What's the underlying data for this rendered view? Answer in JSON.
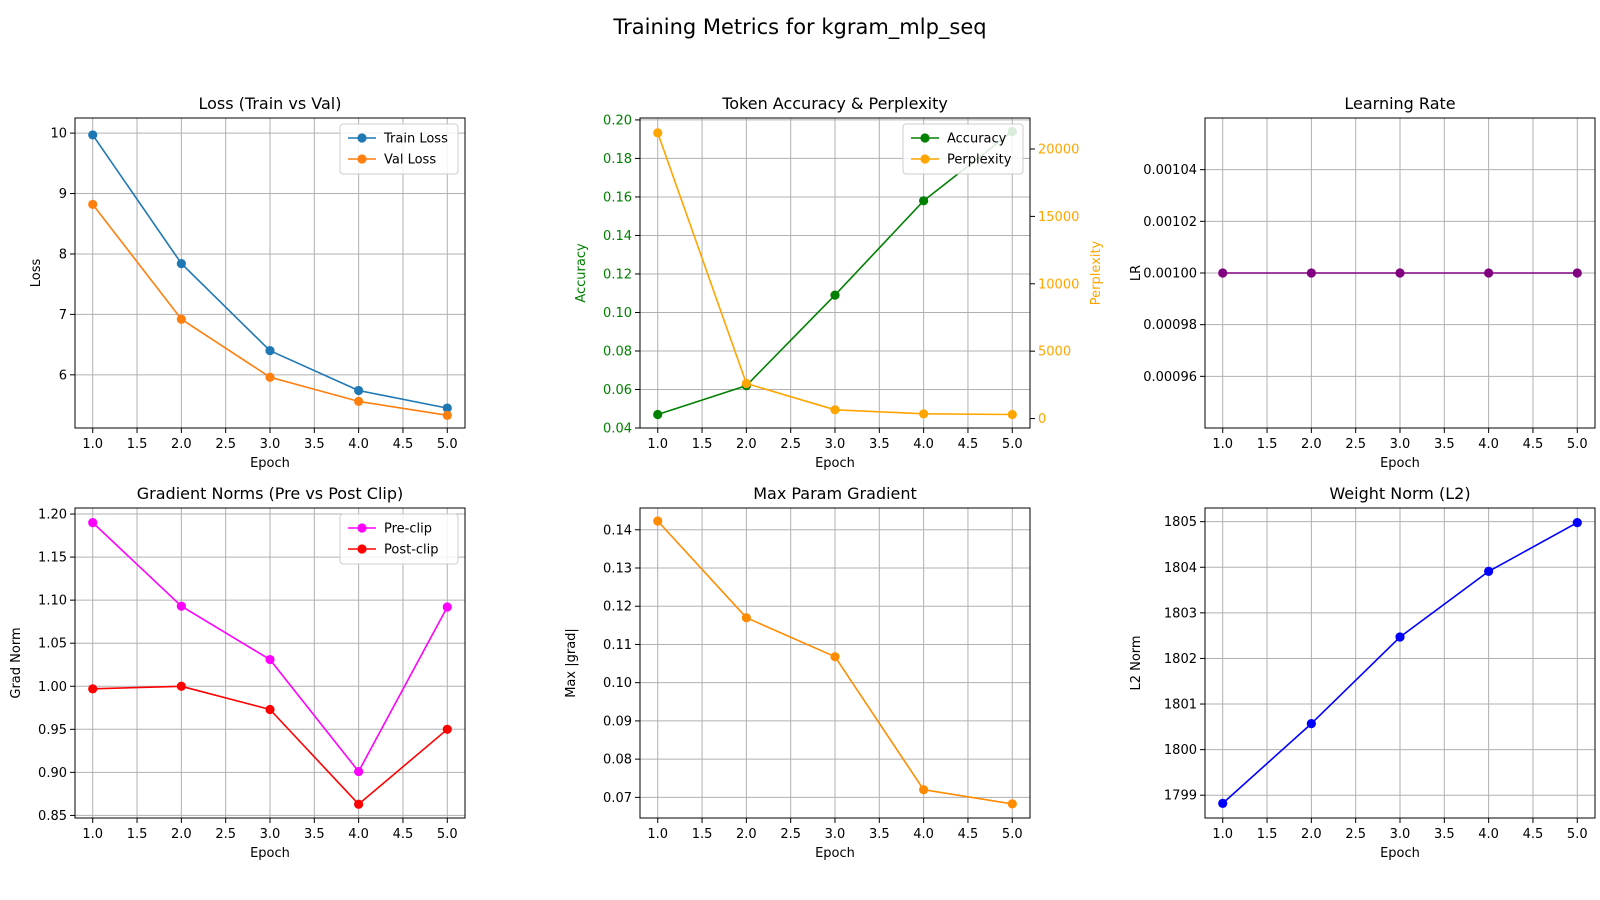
{
  "figure": {
    "title": "Training Metrics for kgram_mlp_seq"
  },
  "colors": {
    "blue": "#1f77b4",
    "orange": "#ff7f0e",
    "green": "#008000",
    "gold": "#ffa500",
    "purple": "#800080",
    "magenta": "#ff00ff",
    "red": "#ff0000",
    "darkorange": "#ff8c00",
    "pureblue": "#0000ff",
    "grid": "#b0b0b0"
  },
  "chart_data": [
    {
      "type": "line",
      "title": "Loss (Train vs Val)",
      "xlabel": "Epoch",
      "ylabel": "Loss",
      "x": [
        1.0,
        2.0,
        3.0,
        4.0,
        5.0
      ],
      "xlim": [
        0.8,
        5.2
      ],
      "ylim": [
        5.12,
        10.25
      ],
      "xticks": [
        "1.0",
        "1.5",
        "2.0",
        "2.5",
        "3.0",
        "3.5",
        "4.0",
        "4.5",
        "5.0"
      ],
      "yticks": [
        "6",
        "7",
        "8",
        "9",
        "10"
      ],
      "grid": true,
      "legend": "top-right",
      "series": [
        {
          "name": "Train Loss",
          "color": "#1f77b4",
          "values": [
            9.97,
            7.84,
            6.4,
            5.74,
            5.45
          ]
        },
        {
          "name": "Val Loss",
          "color": "#ff7f0e",
          "values": [
            8.82,
            6.92,
            5.96,
            5.56,
            5.33
          ]
        }
      ]
    },
    {
      "type": "line",
      "title": "Token Accuracy & Perplexity",
      "xlabel": "Epoch",
      "ylabel": "Accuracy",
      "ylabel_right": "Perplexity",
      "x": [
        1.0,
        2.0,
        3.0,
        4.0,
        5.0
      ],
      "xlim": [
        0.8,
        5.2
      ],
      "ylim": [
        0.04,
        0.201
      ],
      "ylim_right": [
        -700,
        22300
      ],
      "xticks": [
        "1.0",
        "1.5",
        "2.0",
        "2.5",
        "3.0",
        "3.5",
        "4.0",
        "4.5",
        "5.0"
      ],
      "yticks": [
        "0.04",
        "0.06",
        "0.08",
        "0.10",
        "0.12",
        "0.14",
        "0.16",
        "0.18",
        "0.20"
      ],
      "yticks_right": [
        "0",
        "5000",
        "10000",
        "15000",
        "20000"
      ],
      "grid": true,
      "legend": "top-right",
      "series": [
        {
          "name": "Accuracy",
          "color": "#008000",
          "axis": "left",
          "values": [
            0.047,
            0.062,
            0.109,
            0.158,
            0.194
          ]
        },
        {
          "name": "Perplexity",
          "color": "#ffa500",
          "axis": "right",
          "values": [
            21200,
            2600,
            650,
            350,
            300
          ]
        }
      ]
    },
    {
      "type": "line",
      "title": "Learning Rate",
      "xlabel": "Epoch",
      "ylabel": "LR",
      "x": [
        1.0,
        2.0,
        3.0,
        4.0,
        5.0
      ],
      "xlim": [
        0.8,
        5.2
      ],
      "ylim": [
        0.00094,
        0.00106
      ],
      "xticks": [
        "1.0",
        "1.5",
        "2.0",
        "2.5",
        "3.0",
        "3.5",
        "4.0",
        "4.5",
        "5.0"
      ],
      "yticks": [
        "0.00096",
        "0.00098",
        "0.00100",
        "0.00102",
        "0.00104"
      ],
      "grid": true,
      "series": [
        {
          "color": "#800080",
          "values": [
            0.001,
            0.001,
            0.001,
            0.001,
            0.001
          ]
        }
      ]
    },
    {
      "type": "line",
      "title": "Gradient Norms (Pre vs Post Clip)",
      "xlabel": "Epoch",
      "ylabel": "Grad Norm",
      "x": [
        1.0,
        2.0,
        3.0,
        4.0,
        5.0
      ],
      "xlim": [
        0.8,
        5.2
      ],
      "ylim": [
        0.847,
        1.207
      ],
      "xticks": [
        "1.0",
        "1.5",
        "2.0",
        "2.5",
        "3.0",
        "3.5",
        "4.0",
        "4.5",
        "5.0"
      ],
      "yticks": [
        "0.85",
        "0.90",
        "0.95",
        "1.00",
        "1.05",
        "1.10",
        "1.15",
        "1.20"
      ],
      "grid": true,
      "legend": "top-right",
      "series": [
        {
          "name": "Pre-clip",
          "color": "#ff00ff",
          "values": [
            1.19,
            1.093,
            1.031,
            0.901,
            1.092
          ]
        },
        {
          "name": "Post-clip",
          "color": "#ff0000",
          "values": [
            0.997,
            1.0,
            0.973,
            0.863,
            0.95
          ]
        }
      ]
    },
    {
      "type": "line",
      "title": "Max Param Gradient",
      "xlabel": "Epoch",
      "ylabel": "Max |grad|",
      "x": [
        1.0,
        2.0,
        3.0,
        4.0,
        5.0
      ],
      "xlim": [
        0.8,
        5.2
      ],
      "ylim": [
        0.0646,
        0.1457
      ],
      "xticks": [
        "1.0",
        "1.5",
        "2.0",
        "2.5",
        "3.0",
        "3.5",
        "4.0",
        "4.5",
        "5.0"
      ],
      "yticks": [
        "0.07",
        "0.08",
        "0.09",
        "0.10",
        "0.11",
        "0.12",
        "0.13",
        "0.14"
      ],
      "grid": true,
      "series": [
        {
          "color": "#ff8c00",
          "values": [
            0.1423,
            0.117,
            0.1068,
            0.072,
            0.0683
          ]
        }
      ]
    },
    {
      "type": "line",
      "title": "Weight Norm (L2)",
      "xlabel": "Epoch",
      "ylabel": "L2 Norm",
      "x": [
        1.0,
        2.0,
        3.0,
        4.0,
        5.0
      ],
      "xlim": [
        0.8,
        5.2
      ],
      "ylim": [
        1798.5,
        1805.3
      ],
      "xticks": [
        "1.0",
        "1.5",
        "2.0",
        "2.5",
        "3.0",
        "3.5",
        "4.0",
        "4.5",
        "5.0"
      ],
      "yticks": [
        "1799",
        "1800",
        "1801",
        "1802",
        "1803",
        "1804",
        "1805"
      ],
      "grid": true,
      "series": [
        {
          "color": "#0000ff",
          "values": [
            1798.82,
            1800.57,
            1802.47,
            1803.91,
            1804.98
          ]
        }
      ]
    }
  ]
}
